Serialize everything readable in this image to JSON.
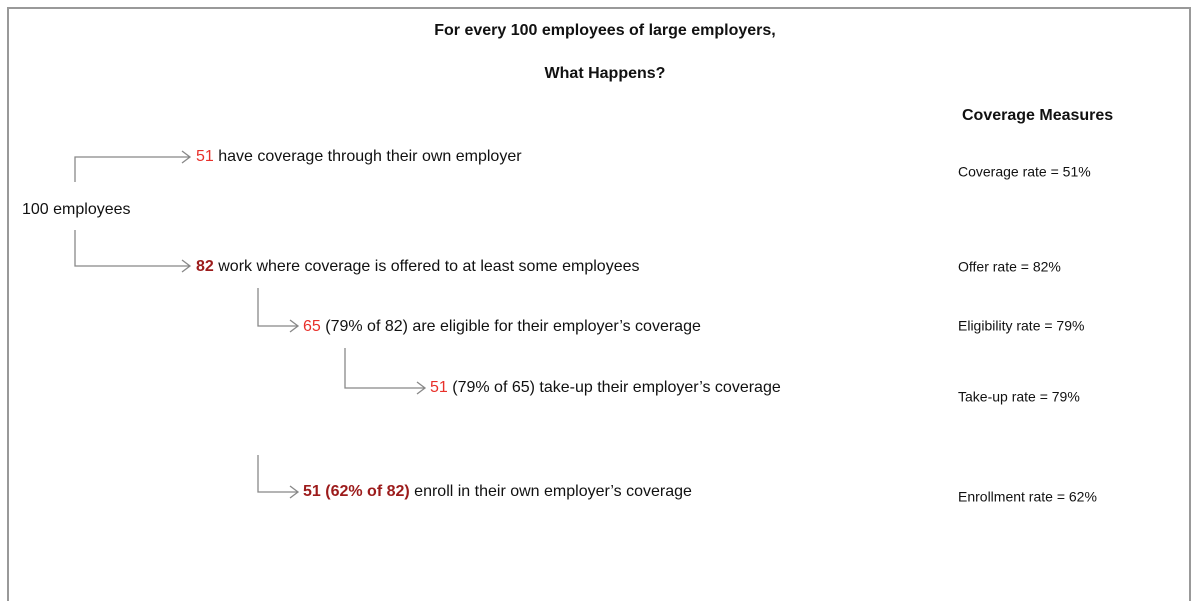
{
  "title": [
    "For every 100 employees of large employers,",
    "What Happens?"
  ],
  "root": "100 employees",
  "nodes": [
    {
      "number": "51",
      "text": "have coverage through their own employer"
    },
    {
      "number": "82",
      "text": "work where coverage is offered to at least some employees"
    },
    {
      "number": "65",
      "detail": "(79% of 82)",
      "text": "are eligible for their employer’s coverage"
    },
    {
      "number": "51",
      "detail": "(79% of 65)",
      "text": "take-up their employer’s coverage"
    },
    {
      "number": "51",
      "detail": "(62% of 82)",
      "text": "enroll in their own employer’s coverage"
    }
  ],
  "measures": {
    "heading": "Coverage Measures",
    "items": [
      "Coverage rate = 51%",
      "Offer rate = 82%",
      "Eligibility rate = 79%",
      "Take-up rate = 79%",
      "Enrollment rate = 62%"
    ]
  }
}
